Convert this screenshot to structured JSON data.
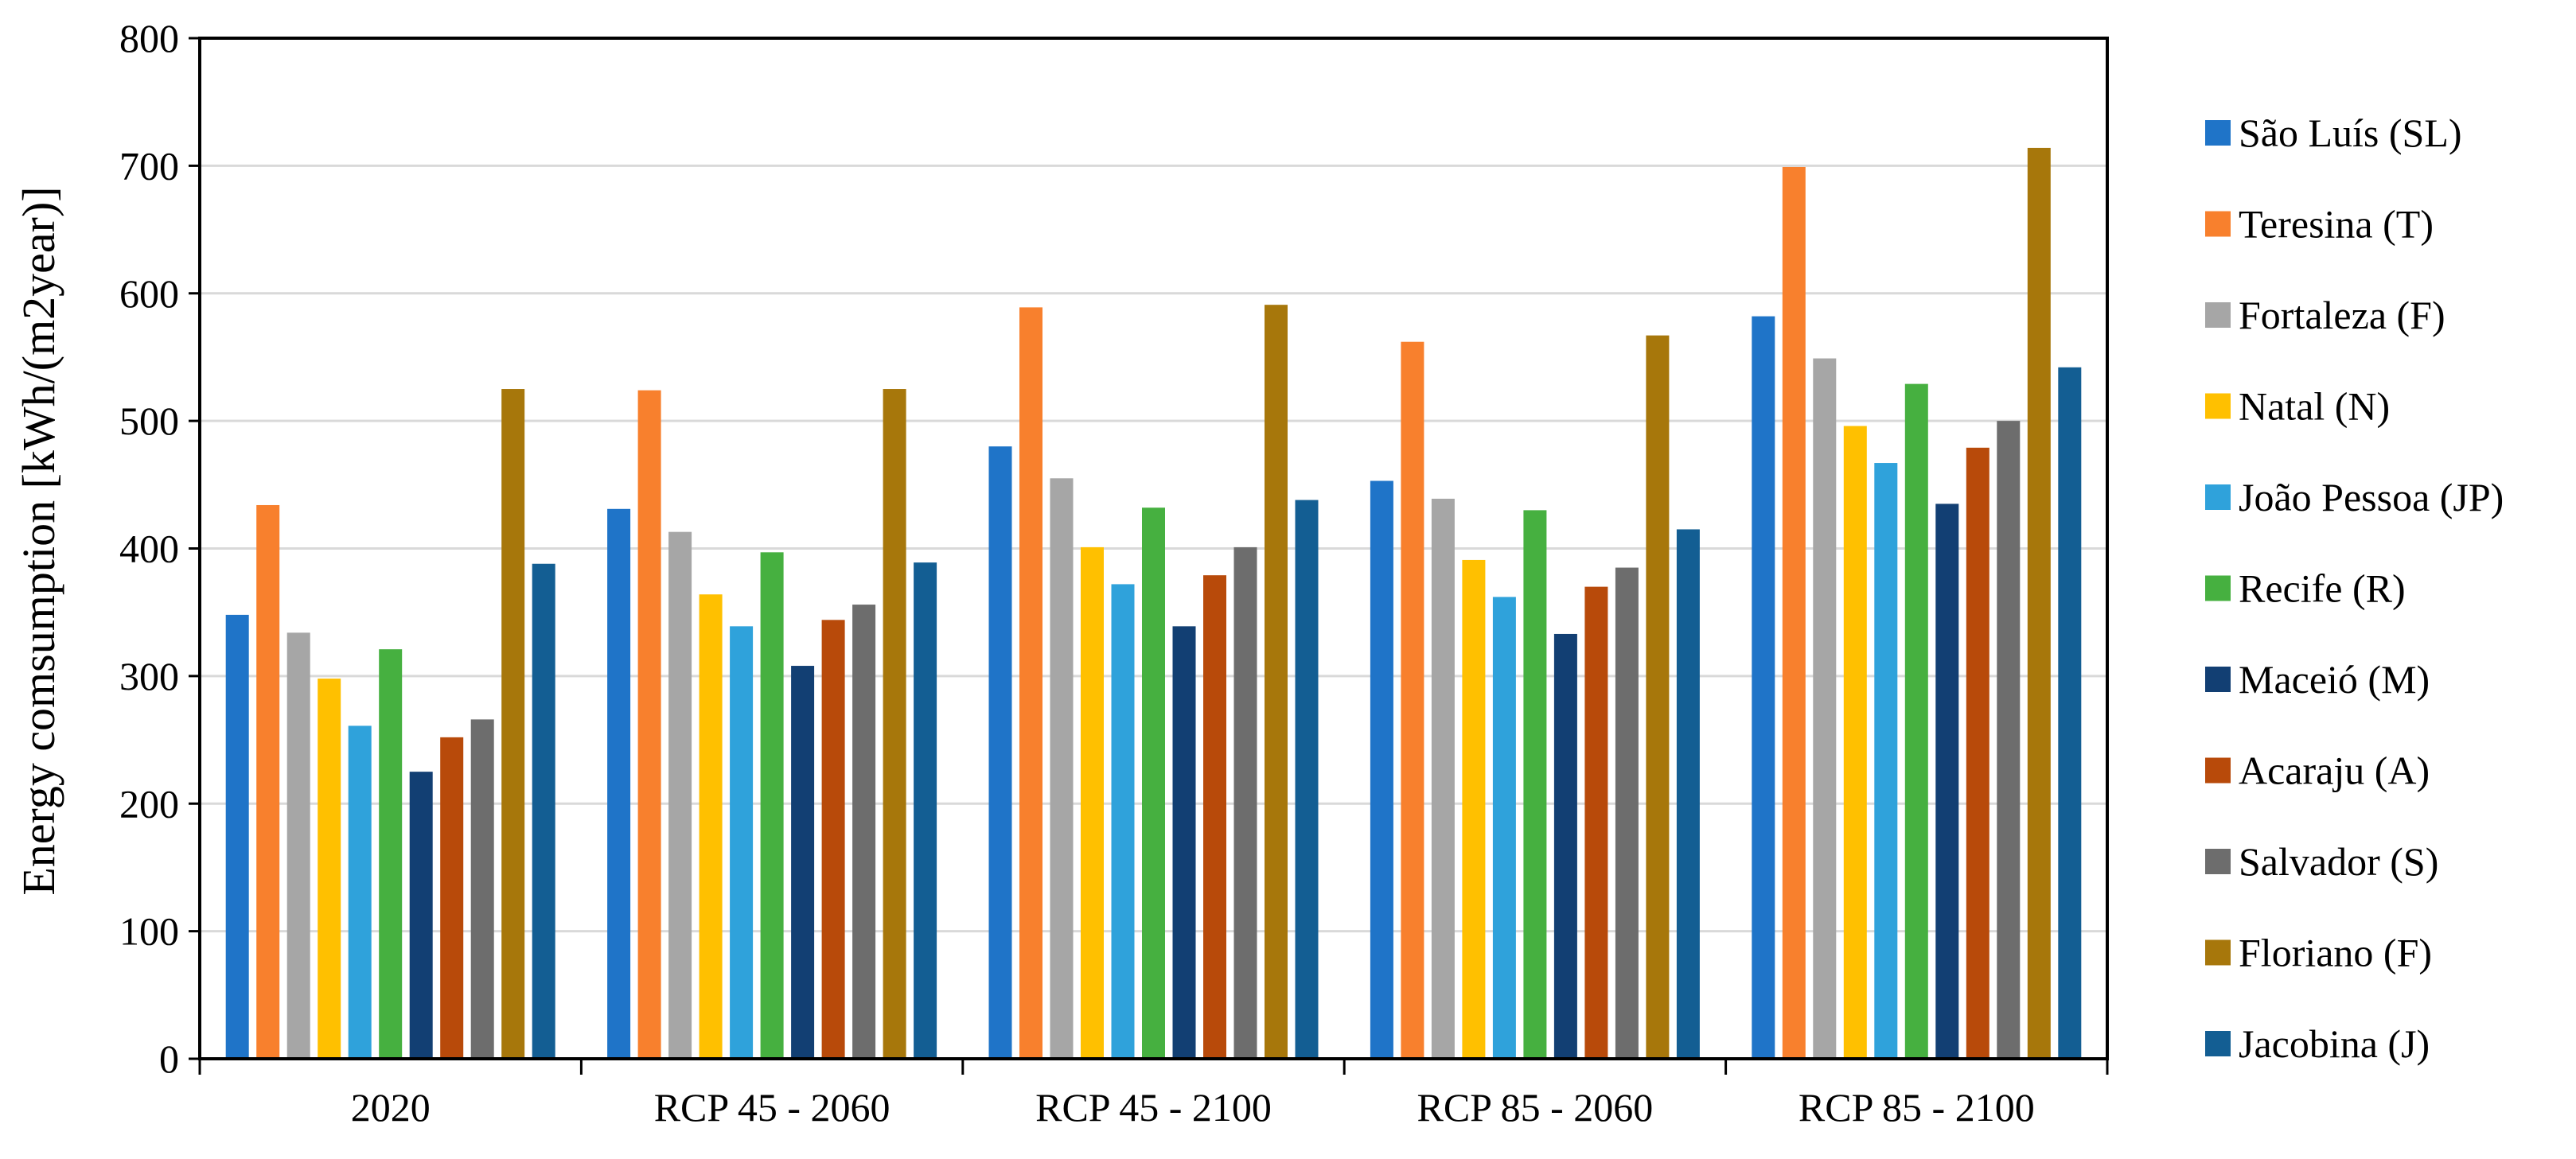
{
  "chart_data": {
    "type": "bar",
    "title": "",
    "xlabel": "",
    "ylabel": "Energy comsumption [kWh/(m2year)]",
    "ylim": [
      0,
      800
    ],
    "yticks": [
      "0",
      "100",
      "200",
      "300",
      "400",
      "500",
      "600",
      "700",
      "800"
    ],
    "grid": true,
    "legend_position": "right",
    "categories": [
      "2020",
      "RCP 45 - 2060",
      "RCP 45 - 2100",
      "RCP 85 - 2060",
      "RCP 85 - 2100"
    ],
    "series": [
      {
        "name": "São Luís (SL)",
        "color": "#1F74C8",
        "values": [
          348,
          431,
          480,
          453,
          582
        ]
      },
      {
        "name": "Teresina (T)",
        "color": "#F8802D",
        "values": [
          434,
          524,
          589,
          562,
          699
        ]
      },
      {
        "name": "Fortaleza (F)",
        "color": "#A6A6A6",
        "values": [
          334,
          413,
          455,
          439,
          549
        ]
      },
      {
        "name": "Natal (N)",
        "color": "#FFC000",
        "values": [
          298,
          364,
          401,
          391,
          496
        ]
      },
      {
        "name": "João Pessoa (JP)",
        "color": "#2FA2DB",
        "values": [
          261,
          339,
          372,
          362,
          467
        ]
      },
      {
        "name": "Recife (R)",
        "color": "#46B040",
        "values": [
          321,
          397,
          432,
          430,
          529
        ]
      },
      {
        "name": "Maceió (M)",
        "color": "#123F73",
        "values": [
          225,
          308,
          339,
          333,
          435
        ]
      },
      {
        "name": "Acaraju (A)",
        "color": "#B84A0A",
        "values": [
          252,
          344,
          379,
          370,
          479
        ]
      },
      {
        "name": "Salvador (S)",
        "color": "#6D6D6D",
        "values": [
          266,
          356,
          401,
          385,
          500
        ]
      },
      {
        "name": "Floriano (F)",
        "color": "#A7770B",
        "values": [
          525,
          525,
          591,
          567,
          714
        ]
      },
      {
        "name": "Jacobina (J)",
        "color": "#135E93",
        "values": [
          388,
          389,
          438,
          415,
          542
        ]
      }
    ]
  }
}
